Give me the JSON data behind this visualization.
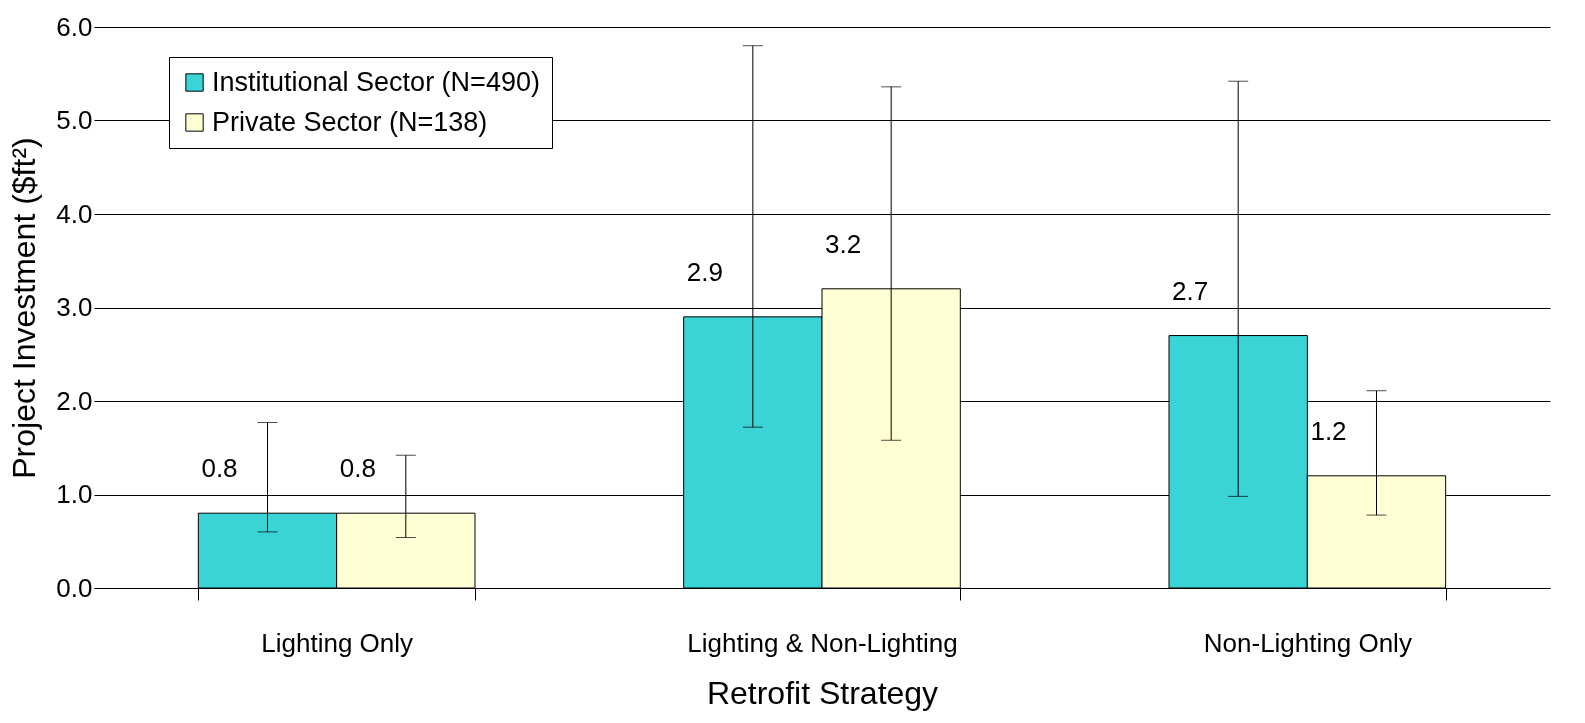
{
  "chart_data": {
    "type": "bar",
    "xlabel": "Retrofit Strategy",
    "ylabel": "Project Investment ($ft²)",
    "categories": [
      "Lighting Only",
      "Lighting & Non-Lighting",
      "Non-Lighting Only"
    ],
    "series": [
      {
        "name": "Institutional Sector (N=490)",
        "color": "#3bd4d6",
        "values": [
          0.8,
          2.9,
          2.7
        ],
        "errors": [
          [
            0.6,
            1.77
          ],
          [
            1.72,
            5.8
          ],
          [
            0.98,
            5.42
          ]
        ],
        "value_labels": [
          "0.8",
          "2.9",
          "2.7"
        ]
      },
      {
        "name": "Private Sector (N=138)",
        "color": "#ffffd5",
        "values": [
          0.8,
          3.2,
          1.2
        ],
        "errors": [
          [
            0.54,
            1.42
          ],
          [
            1.58,
            5.36
          ],
          [
            0.78,
            2.11
          ]
        ],
        "value_labels": [
          "0.8",
          "3.2",
          "1.2"
        ]
      }
    ],
    "ylim": [
      0,
      6
    ],
    "yticks": [
      {
        "value": 0,
        "label": "0.0"
      },
      {
        "value": 1,
        "label": "1.0"
      },
      {
        "value": 2,
        "label": "2.0"
      },
      {
        "value": 3,
        "label": "3.0"
      },
      {
        "value": 4,
        "label": "4.0"
      },
      {
        "value": 5,
        "label": "5.0"
      },
      {
        "value": 6,
        "label": "6.0"
      }
    ],
    "grid": "y",
    "legend": "top left"
  }
}
